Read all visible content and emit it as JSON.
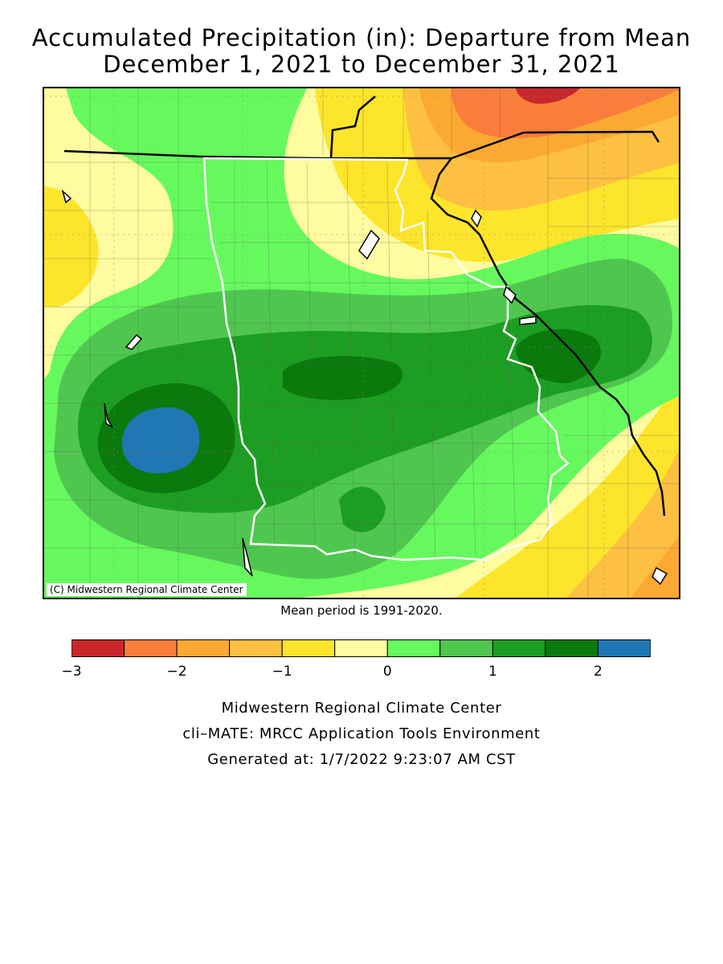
{
  "title_line1": "Accumulated Precipitation (in): Departure from Mean",
  "title_line2": "December 1, 2021 to December 31, 2021",
  "map": {
    "copyright": "(C) Midwestern Regional Climate Center"
  },
  "mean_period_note": "Mean period is 1991-2020.",
  "legend": {
    "bins": [
      -3,
      -2.5,
      -2,
      -1.5,
      -1,
      -0.5,
      0,
      0.5,
      1,
      1.5,
      2,
      2.5
    ],
    "colors": [
      "#c8282a",
      "#fb7d3c",
      "#fca932",
      "#fec040",
      "#fde52b",
      "#fffba0",
      "#66f95e",
      "#4fc74f",
      "#1c9e22",
      "#0a7a0c",
      "#1f78b4"
    ],
    "tick_labels": [
      "−3",
      "−2",
      "−1",
      "0",
      "1",
      "2"
    ],
    "tick_values": [
      -3,
      -2,
      -1,
      0,
      1,
      2
    ]
  },
  "footer": {
    "line1": "Midwestern Regional Climate Center",
    "line2": "cli–MATE: MRCC Application Tools Environment",
    "line3": "Generated at: 1/7/2022 9:23:07 AM CST"
  }
}
